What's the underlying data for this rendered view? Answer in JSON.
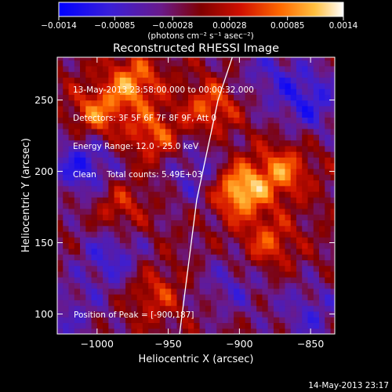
{
  "chart_data": {
    "type": "heatmap",
    "title": "Reconstructed RHESSI Image",
    "xlabel": "Heliocentric X (arcsec)",
    "ylabel": "Heliocentric Y (arcsec)",
    "xlim": [
      -1028,
      -833
    ],
    "ylim": [
      86,
      280
    ],
    "x_ticks": [
      -1000,
      -950,
      -900,
      -850
    ],
    "x_tick_labels": [
      "−1000",
      "−950",
      "−900",
      "−850"
    ],
    "y_ticks": [
      100,
      150,
      200,
      250
    ],
    "y_tick_labels": [
      "100",
      "150",
      "200",
      "250"
    ],
    "colorbar": {
      "range": [
        -0.0014,
        0.0014
      ],
      "ticks": [
        -0.0014,
        -0.00085,
        -0.00028,
        0.00028,
        0.00085,
        0.0014
      ],
      "tick_labels": [
        "−0.0014",
        "−0.00085",
        "−0.00028",
        "0.00028",
        "0.00085",
        "0.0014"
      ],
      "label": "(photons cm⁻² s⁻¹ asec⁻²)",
      "colors": [
        "#0000ff",
        "#5a1fb8",
        "#7a1a4a",
        "#b00000",
        "#ff3000",
        "#ff9a00",
        "#ffe060",
        "#ffffff"
      ]
    },
    "peak": {
      "x": -900,
      "y": 187,
      "value": 0.0014
    },
    "bright_sources": [
      {
        "x": -900,
        "y": 187,
        "value": 0.0014
      },
      {
        "x": -975,
        "y": 262,
        "value": 0.001
      },
      {
        "x": -1000,
        "y": 240,
        "value": 0.0009
      },
      {
        "x": -960,
        "y": 225,
        "value": 0.0008
      },
      {
        "x": -870,
        "y": 200,
        "value": 0.0009
      },
      {
        "x": -920,
        "y": 245,
        "value": 0.0008
      },
      {
        "x": -880,
        "y": 150,
        "value": 0.0007
      },
      {
        "x": -960,
        "y": 115,
        "value": 0.0006
      },
      {
        "x": -985,
        "y": 175,
        "value": 0.0006
      }
    ],
    "dim_regions": [
      {
        "x": -1010,
        "y": 205,
        "value": -0.0009
      },
      {
        "x": -930,
        "y": 200,
        "value": -0.0006
      },
      {
        "x": -850,
        "y": 250,
        "value": -0.0008
      },
      {
        "x": -990,
        "y": 140,
        "value": -0.0007
      },
      {
        "x": -905,
        "y": 120,
        "value": -0.0005
      },
      {
        "x": -850,
        "y": 100,
        "value": -0.0006
      },
      {
        "x": -1020,
        "y": 100,
        "value": -0.0005
      },
      {
        "x": -880,
        "y": 270,
        "value": -0.0005
      }
    ],
    "limb_curve": {
      "x": [
        -942,
        -930,
        -915,
        -905
      ],
      "y": [
        86,
        180,
        250,
        280
      ]
    }
  },
  "annotations": {
    "line1": "13-May-2013 23:58:00.000 to 00:00:32.000",
    "line2": "Detectors: 3F 5F 6F 7F 8F 9F, Att 0",
    "line3": "Energy Range: 12.0 - 25.0 keV",
    "line4": "Clean    Total counts: 5.49E+03",
    "peak_label": "Position of Peak = [-900,187]"
  },
  "timestamp": "14-May-2013 23:17"
}
